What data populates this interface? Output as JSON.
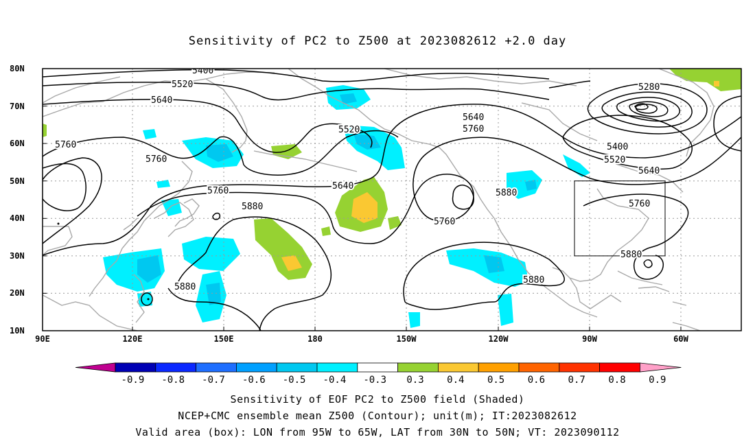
{
  "title": "Sensitivity of PC2 to Z500 at 2023082612 +2.0 day",
  "map": {
    "lat_labels": [
      "80N",
      "70N",
      "60N",
      "50N",
      "40N",
      "30N",
      "20N",
      "10N"
    ],
    "lon_labels": [
      "90E",
      "120E",
      "150E",
      "180",
      "150W",
      "120W",
      "90W",
      "60W"
    ],
    "colors": {
      "coast": "#a0a0a0",
      "grid": "#999999",
      "contour": "#000000"
    },
    "contour_labels": [
      "5400",
      "5520",
      "5640",
      "5760",
      "5760",
      "5760",
      "5880",
      "5880",
      "5520",
      "5640",
      "5640",
      "5760",
      "5760",
      "5880",
      "5280",
      "5400",
      "5520",
      "5640",
      "5760",
      "5880",
      "5880"
    ],
    "valid_box": {
      "lon": [
        "95W",
        "65W"
      ],
      "lat": [
        "30N",
        "50N"
      ]
    }
  },
  "colorbar": {
    "labels": [
      "-0.9",
      "-0.8",
      "-0.7",
      "-0.6",
      "-0.5",
      "-0.4",
      "-0.3",
      "0.3",
      "0.4",
      "0.5",
      "0.6",
      "0.7",
      "0.8",
      "0.9"
    ],
    "colors": [
      "#0000b4",
      "#0a28ff",
      "#1e6eff",
      "#00a0ff",
      "#00c8f0",
      "#00f0ff",
      "#ffffff",
      "#96d232",
      "#fac832",
      "#ffa000",
      "#ff6400",
      "#ff3200",
      "#ff0000"
    ],
    "left_arrow_color": "#c00090",
    "right_arrow_color": "#ffa0c8"
  },
  "captions": {
    "line1": "Sensitivity of EOF PC2 to Z500 field (Shaded)",
    "line2": "NCEP+CMC ensemble mean Z500 (Contour); unit(m); IT:2023082612",
    "line3": "Valid area (box): LON from 95W to 65W, LAT from 30N to 50N; VT: 2023090112"
  }
}
